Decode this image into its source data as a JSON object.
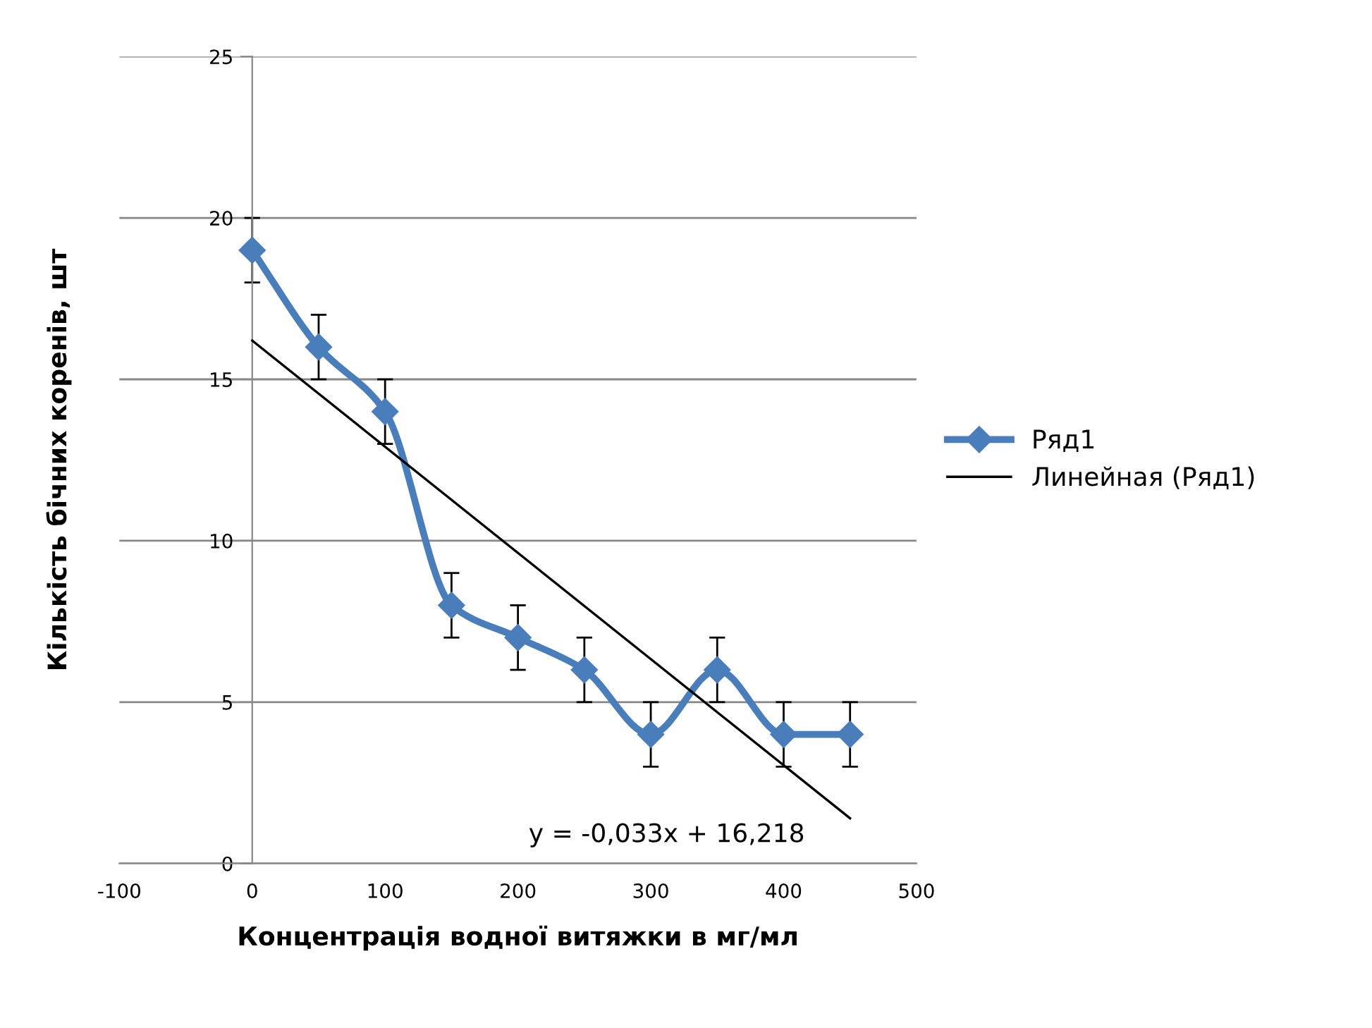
{
  "chart_data": {
    "type": "line",
    "xlabel": "Концентрація водної витяжки в мг/мл",
    "ylabel": "Кількість бічних коренів, шт",
    "x": [
      0,
      50,
      100,
      150,
      200,
      250,
      300,
      350,
      400,
      450
    ],
    "series": [
      {
        "name": "Ряд1",
        "color": "#4a7ebb",
        "values": [
          19,
          16,
          14,
          8,
          7,
          6,
          4,
          6,
          4,
          4
        ],
        "errors": [
          1,
          1,
          1,
          1,
          1,
          1,
          1,
          1,
          1,
          1
        ],
        "marker": "diamond",
        "line_style": "solid"
      },
      {
        "name": "Линейная (Ряд1)",
        "color": "#000000",
        "x": [
          0,
          450
        ],
        "values": [
          16.2,
          1.4
        ],
        "marker": "none",
        "line_style": "solid"
      }
    ],
    "annotations": [
      "y = -0,033x + 16,218"
    ],
    "xlim": [
      -100,
      500
    ],
    "xticks": [
      -100,
      0,
      100,
      200,
      300,
      400,
      500
    ],
    "ylim": [
      0,
      25
    ],
    "yticks": [
      0,
      5,
      10,
      15,
      20,
      25
    ],
    "grid": "y",
    "legend": "right"
  }
}
